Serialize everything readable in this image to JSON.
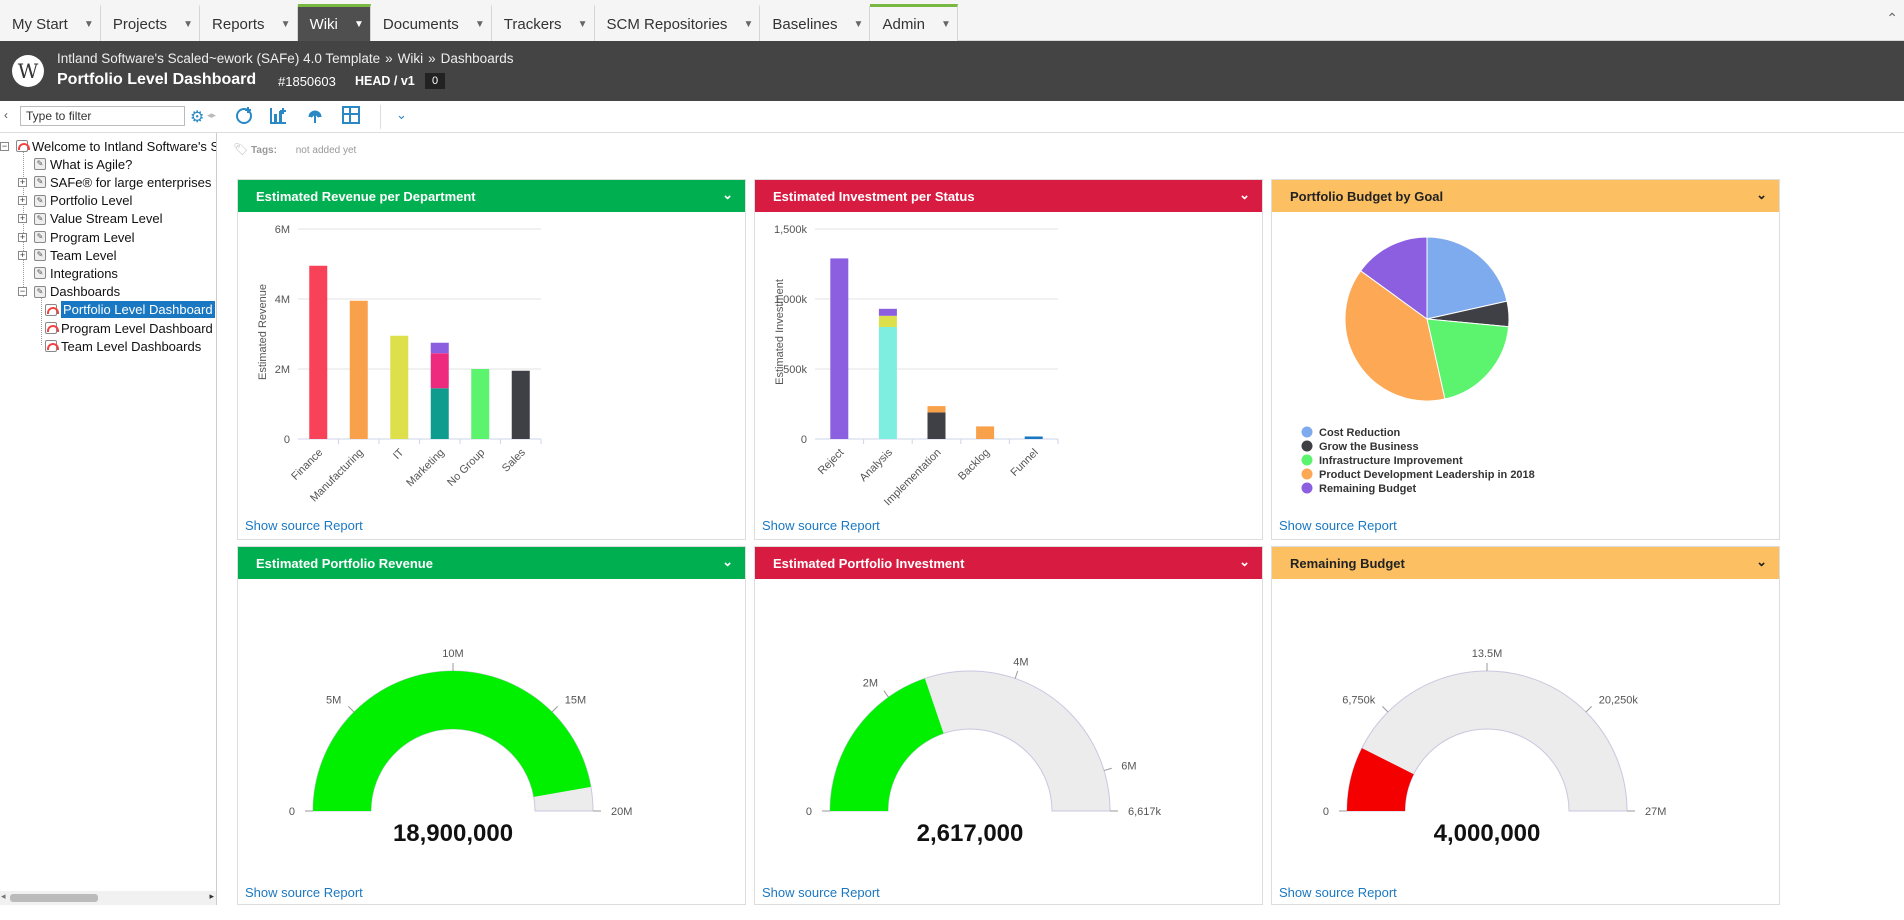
{
  "nav": {
    "tabs": [
      {
        "label": "My Start"
      },
      {
        "label": "Projects"
      },
      {
        "label": "Reports"
      },
      {
        "label": "Wiki"
      },
      {
        "label": "Documents"
      },
      {
        "label": "Trackers"
      },
      {
        "label": "SCM Repositories"
      },
      {
        "label": "Baselines"
      },
      {
        "label": "Admin"
      }
    ],
    "active_tab": "Wiki"
  },
  "header": {
    "breadcrumb": [
      "Intland Software's Scaled~ework (SAFe) 4.0 Template",
      "Wiki",
      "Dashboards"
    ],
    "title": "Portfolio Level Dashboard",
    "id": "#1850603",
    "head": "HEAD / v1",
    "badge": "0",
    "logo_letter": "W"
  },
  "toolbar": {
    "filter_placeholder": "Type to filter"
  },
  "tree": [
    {
      "label": "Welcome to Intland Software's S",
      "level": 0,
      "toggle": "−",
      "icon": "dashboard"
    },
    {
      "label": "What is Agile?",
      "level": 1,
      "toggle": "",
      "icon": "page"
    },
    {
      "label": "SAFe® for large enterprises",
      "level": 1,
      "toggle": "+",
      "icon": "page"
    },
    {
      "label": "Portfolio Level",
      "level": 1,
      "toggle": "+",
      "icon": "page"
    },
    {
      "label": "Value Stream Level",
      "level": 1,
      "toggle": "+",
      "icon": "page"
    },
    {
      "label": "Program Level",
      "level": 1,
      "toggle": "+",
      "icon": "page"
    },
    {
      "label": "Team Level",
      "level": 1,
      "toggle": "+",
      "icon": "page"
    },
    {
      "label": "Integrations",
      "level": 1,
      "toggle": "",
      "icon": "page"
    },
    {
      "label": "Dashboards",
      "level": 1,
      "toggle": "−",
      "icon": "page"
    },
    {
      "label": "Portfolio Level Dashboard",
      "level": 2,
      "toggle": "",
      "icon": "dashboard",
      "selected": true
    },
    {
      "label": "Program Level Dashboard",
      "level": 2,
      "toggle": "",
      "icon": "dashboard"
    },
    {
      "label": "Team Level Dashboards",
      "level": 2,
      "toggle": "",
      "icon": "dashboard"
    }
  ],
  "tags": {
    "label": "Tags:",
    "value": "not added yet"
  },
  "show_source": "Show source Report",
  "panels": {
    "p1": {
      "title": "Estimated Revenue per Department",
      "color": "#00b050"
    },
    "p2": {
      "title": "Estimated Investment per Status",
      "color": "#d81b41"
    },
    "p3": {
      "title": "Portfolio Budget by Goal",
      "color": "#fcc062"
    },
    "p4": {
      "title": "Estimated Portfolio Revenue",
      "color": "#00b050"
    },
    "p5": {
      "title": "Estimated Portfolio Investment",
      "color": "#d81b41"
    },
    "p6": {
      "title": "Remaining Budget",
      "color": "#fcc062"
    }
  },
  "chart_data": [
    {
      "type": "bar",
      "title": "Estimated Revenue per Department",
      "ylabel": "Estimated Revenue",
      "ylim": [
        0,
        6000000
      ],
      "yticks": [
        {
          "v": 0,
          "label": "0"
        },
        {
          "v": 2000000,
          "label": "2M"
        },
        {
          "v": 4000000,
          "label": "4M"
        },
        {
          "v": 6000000,
          "label": "6M"
        }
      ],
      "categories": [
        "Finance",
        "Manufacturing",
        "IT",
        "Marketing",
        "No Group",
        "Sales"
      ],
      "stacks": [
        [
          {
            "value": 4950000,
            "color": "#f74258"
          }
        ],
        [
          {
            "value": 3950000,
            "color": "#f8a14a"
          }
        ],
        [
          {
            "value": 2950000,
            "color": "#dde04a"
          }
        ],
        [
          {
            "value": 1450000,
            "color": "#0e9c8e"
          },
          {
            "value": 1000000,
            "color": "#ee2a7e"
          },
          {
            "value": 300000,
            "color": "#8b5fe0"
          }
        ],
        [
          {
            "value": 2000000,
            "color": "#5cf46e"
          }
        ],
        [
          {
            "value": 1950000,
            "color": "#3f3f46"
          }
        ]
      ]
    },
    {
      "type": "bar",
      "title": "Estimated Investment per Status",
      "ylabel": "Estimated Investment",
      "ylim": [
        0,
        1500000
      ],
      "yticks": [
        {
          "v": 0,
          "label": "0"
        },
        {
          "v": 500000,
          "label": "500k"
        },
        {
          "v": 1000000,
          "label": "1,000k"
        },
        {
          "v": 1500000,
          "label": "1,500k"
        }
      ],
      "categories": [
        "Reject",
        "Analysis",
        "Implementation",
        "Backlog",
        "Funnel"
      ],
      "stacks": [
        [
          {
            "value": 1290000,
            "color": "#8b5fe0"
          }
        ],
        [
          {
            "value": 800000,
            "color": "#7eeee0"
          },
          {
            "value": 80000,
            "color": "#dde04a"
          },
          {
            "value": 50000,
            "color": "#8b5fe0"
          }
        ],
        [
          {
            "value": 190000,
            "color": "#3f3f46"
          },
          {
            "value": 45000,
            "color": "#f8a14a"
          }
        ],
        [
          {
            "value": 90000,
            "color": "#f8a14a"
          }
        ],
        [
          {
            "value": 18000,
            "color": "#1a78c2"
          }
        ]
      ]
    },
    {
      "type": "pie",
      "title": "Portfolio Budget by Goal",
      "slices": [
        {
          "name": "Cost Reduction",
          "value": 21.5,
          "color": "#7eabee"
        },
        {
          "name": "Grow the Business",
          "value": 5,
          "color": "#3f3f46"
        },
        {
          "name": "Infrastructure Improvement",
          "value": 20,
          "color": "#5cf46e"
        },
        {
          "name": "Product Development Leadership in 2018",
          "value": 38.5,
          "color": "#fca854"
        },
        {
          "name": "Remaining Budget",
          "value": 15,
          "color": "#8b5fe0"
        }
      ],
      "legend": "bottom-left"
    },
    {
      "type": "gauge",
      "title": "Estimated Portfolio Revenue",
      "min": 0,
      "max": 20000000,
      "value": 18900000,
      "display": "18,900,000",
      "fill": "#00f000",
      "ticks": [
        {
          "v": 0,
          "label": "0"
        },
        {
          "v": 5000000,
          "label": "5M"
        },
        {
          "v": 10000000,
          "label": "10M"
        },
        {
          "v": 15000000,
          "label": "15M"
        },
        {
          "v": 20000000,
          "label": "20M"
        }
      ]
    },
    {
      "type": "gauge",
      "title": "Estimated Portfolio Investment",
      "min": 0,
      "max": 6617000,
      "value": 2617000,
      "display": "2,617,000",
      "fill": "#00f000",
      "ticks": [
        {
          "v": 0,
          "label": "0"
        },
        {
          "v": 2000000,
          "label": "2M"
        },
        {
          "v": 4000000,
          "label": "4M"
        },
        {
          "v": 6000000,
          "label": "6M"
        },
        {
          "v": 6617000,
          "label": "6,617k"
        }
      ]
    },
    {
      "type": "gauge",
      "title": "Remaining Budget",
      "min": 0,
      "max": 27000000,
      "value": 4000000,
      "display": "4,000,000",
      "fill": "#f40000",
      "ticks": [
        {
          "v": 0,
          "label": "0"
        },
        {
          "v": 6750000,
          "label": "6,750k"
        },
        {
          "v": 13500000,
          "label": "13.5M"
        },
        {
          "v": 20250000,
          "label": "20,250k"
        },
        {
          "v": 27000000,
          "label": "27M"
        }
      ]
    }
  ]
}
